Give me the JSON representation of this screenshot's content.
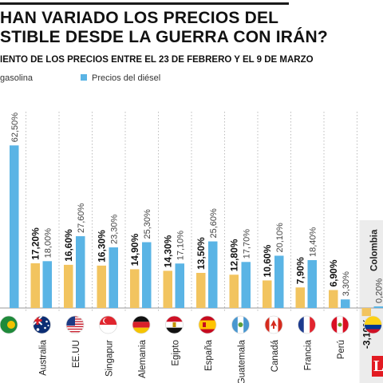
{
  "header": {
    "title_line1": "HAN VARIADO LOS PRECIOS DEL",
    "title_line2": "STIBLE DESDE LA GUERRA CON IRÁN?",
    "subtitle": "IENTO DE LOS PRECIOS ENTRE EL 23 DE FEBRERO Y EL 9 DE MARZO"
  },
  "legend": [
    {
      "label": "gasolina",
      "color": "#f2c45f"
    },
    {
      "label": "Precios del diésel",
      "color": "#5ab4e5"
    }
  ],
  "brand": {
    "text": "L",
    "color": "#e21b22"
  },
  "colors": {
    "gasoline": "#f2c45f",
    "diesel": "#5ab4e5",
    "grid": "#bdbdbd",
    "highlight_bg": "#ececec"
  },
  "chart_data": {
    "type": "bar",
    "categories": [
      "",
      "Australia",
      "EE.UU",
      "Singapur",
      "Alemania",
      "Egipto",
      "España",
      "Guatemala",
      "Canadá",
      "Francia",
      "Perú",
      "Colombia"
    ],
    "flags": [
      "cut-off-flag",
      "australia-flag",
      "usa-flag",
      "singapore-flag",
      "germany-flag",
      "egypt-flag",
      "spain-flag",
      "guatemala-flag",
      "canada-flag",
      "france-flag",
      "peru-flag",
      "colombia-flag"
    ],
    "series": [
      {
        "key": "gasoline",
        "values": [
          null,
          17.2,
          16.6,
          16.3,
          14.9,
          14.3,
          13.5,
          12.8,
          10.6,
          7.9,
          6.9,
          -3.1
        ],
        "labels": [
          "",
          "17,20%",
          "16,60%",
          "16,30%",
          "14,90%",
          "14,30%",
          "13,50%",
          "12,80%",
          "10,60%",
          "7,90%",
          "6,90%",
          "-3,10%"
        ]
      },
      {
        "key": "diesel",
        "values": [
          62.5,
          18.0,
          27.6,
          23.3,
          25.3,
          17.1,
          25.6,
          17.7,
          20.1,
          18.4,
          3.3,
          0.2
        ],
        "labels": [
          "62,50%",
          "18,00%",
          "27,60%",
          "23,30%",
          "25,30%",
          "17,10%",
          "25,60%",
          "17,70%",
          "20,10%",
          "18,40%",
          "3,30%",
          "0,20%"
        ]
      }
    ],
    "highlight": "Colombia",
    "ylim": [
      -4,
      64
    ]
  }
}
